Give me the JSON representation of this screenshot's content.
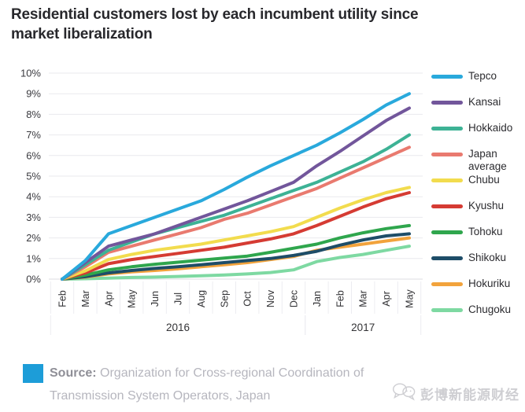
{
  "header": {
    "title_line1": "Residential customers lost by each incumbent utility since",
    "title_line2": "market liberalization"
  },
  "chart_data": {
    "type": "line",
    "title": "Residential customers lost by each incumbent utility since market liberalization",
    "x": [
      "Feb",
      "Mar",
      "Apr",
      "May",
      "Jun",
      "Jul",
      "Aug",
      "Sep",
      "Oct",
      "Nov",
      "Dec",
      "Jan",
      "Feb",
      "Mar",
      "Apr",
      "May"
    ],
    "year_groups": [
      {
        "label": "2016",
        "start": 0,
        "end": 10
      },
      {
        "label": "2017",
        "start": 11,
        "end": 15
      }
    ],
    "y_ticks": [
      "0%",
      "1%",
      "2%",
      "3%",
      "4%",
      "5%",
      "6%",
      "7%",
      "8%",
      "9%",
      "10%"
    ],
    "ylim": [
      0,
      10
    ],
    "grid": true,
    "legend_position": "right",
    "series": [
      {
        "name": "Tepco",
        "color": "#29A9DC",
        "values": [
          0,
          0.9,
          2.2,
          2.6,
          3.0,
          3.4,
          3.8,
          4.35,
          4.95,
          5.5,
          6.0,
          6.5,
          7.1,
          7.75,
          8.45,
          9.0
        ]
      },
      {
        "name": "Kansai",
        "color": "#72569B",
        "values": [
          0,
          0.8,
          1.6,
          1.9,
          2.2,
          2.6,
          3.0,
          3.4,
          3.8,
          4.25,
          4.7,
          5.5,
          6.2,
          6.95,
          7.7,
          8.3
        ]
      },
      {
        "name": "Hokkaido",
        "color": "#3DB295",
        "values": [
          0,
          0.7,
          1.4,
          1.8,
          2.2,
          2.5,
          2.8,
          3.1,
          3.5,
          3.9,
          4.3,
          4.7,
          5.2,
          5.7,
          6.3,
          7.0
        ]
      },
      {
        "name": "Japan average",
        "color": "#E97A6F",
        "values": [
          0,
          0.6,
          1.3,
          1.6,
          1.9,
          2.2,
          2.5,
          2.9,
          3.2,
          3.6,
          4.0,
          4.4,
          4.9,
          5.4,
          5.9,
          6.4
        ]
      },
      {
        "name": "Chubu",
        "color": "#F2DC4E",
        "values": [
          0,
          0.4,
          0.95,
          1.2,
          1.4,
          1.55,
          1.7,
          1.9,
          2.1,
          2.3,
          2.55,
          3.0,
          3.45,
          3.85,
          4.2,
          4.45
        ]
      },
      {
        "name": "Kyushu",
        "color": "#D53B33",
        "values": [
          0,
          0.3,
          0.75,
          0.95,
          1.1,
          1.25,
          1.4,
          1.55,
          1.75,
          1.95,
          2.2,
          2.6,
          3.05,
          3.5,
          3.9,
          4.2
        ]
      },
      {
        "name": "Tohoku",
        "color": "#2FA64D",
        "values": [
          0,
          0.2,
          0.45,
          0.6,
          0.72,
          0.82,
          0.92,
          1.02,
          1.12,
          1.3,
          1.5,
          1.7,
          2.0,
          2.25,
          2.45,
          2.6
        ]
      },
      {
        "name": "Shikoku",
        "color": "#1E4D68",
        "values": [
          0,
          0.12,
          0.3,
          0.42,
          0.52,
          0.6,
          0.7,
          0.8,
          0.9,
          1.0,
          1.15,
          1.35,
          1.65,
          1.9,
          2.1,
          2.2
        ]
      },
      {
        "name": "Hokuriku",
        "color": "#F2A33C",
        "values": [
          0,
          0.1,
          0.25,
          0.35,
          0.42,
          0.5,
          0.6,
          0.7,
          0.8,
          0.95,
          1.1,
          1.4,
          1.55,
          1.7,
          1.85,
          2.0
        ]
      },
      {
        "name": "Chugoku",
        "color": "#7ED9A2",
        "values": [
          0,
          0.02,
          0.05,
          0.08,
          0.1,
          0.13,
          0.16,
          0.2,
          0.25,
          0.32,
          0.45,
          0.85,
          1.05,
          1.2,
          1.4,
          1.6
        ]
      }
    ]
  },
  "footer": {
    "source_label": "Source:",
    "source_line1": "Organization for Cross-regional Coordination of",
    "source_line2": "Transmission System Operators, Japan",
    "brand_square_color": "#1D9DD8"
  },
  "watermark": {
    "text": "彭博新能源财经"
  }
}
